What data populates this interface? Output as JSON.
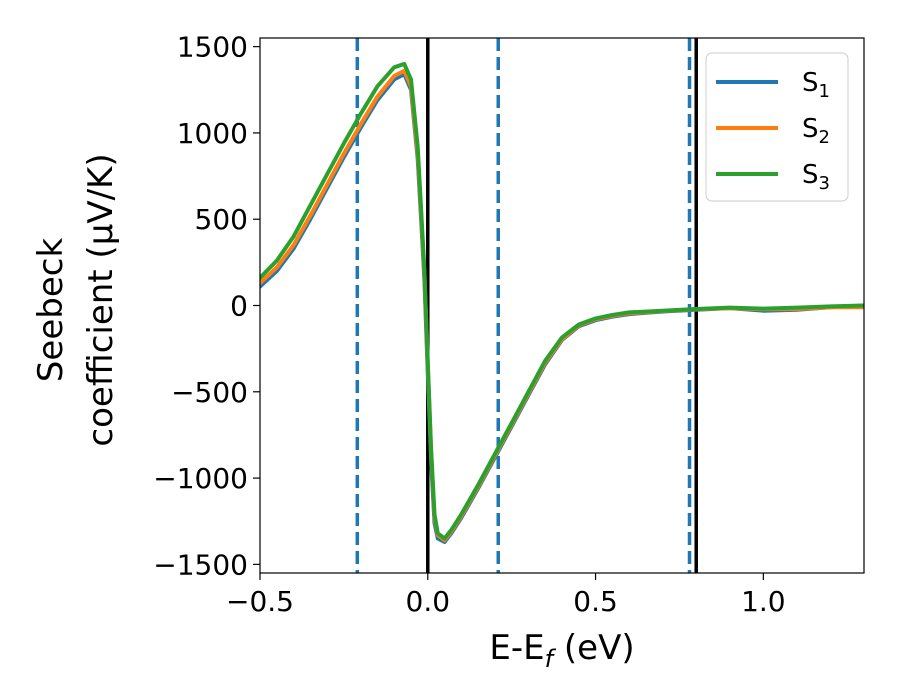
{
  "chart_data": {
    "type": "line",
    "title": "",
    "xlabel": "E-E$_f$ (eV)",
    "xlabel_parts": {
      "main": "E-E",
      "sub": "f",
      "rest": " (eV)"
    },
    "ylabel_line1": "Seebeck",
    "ylabel_line2": "coefficient  (μV/K)",
    "xlim": [
      -0.5,
      1.3
    ],
    "ylim": [
      -1550,
      1550
    ],
    "xticks": [
      -0.5,
      0.0,
      0.5,
      1.0
    ],
    "xtick_labels": [
      "−0.5",
      "0.0",
      "0.5",
      "1.0"
    ],
    "yticks": [
      -1500,
      -1000,
      -500,
      0,
      500,
      1000,
      1500
    ],
    "ytick_labels": [
      "−1500",
      "−1000",
      "−500",
      "0",
      "500",
      "1000",
      "1500"
    ],
    "grid": false,
    "legend": {
      "position": "top-right"
    },
    "series": [
      {
        "name": "S1",
        "label_main": "S",
        "label_sub": "1",
        "color": "#1f77b4",
        "x": [
          -0.5,
          -0.45,
          -0.4,
          -0.35,
          -0.3,
          -0.25,
          -0.2,
          -0.15,
          -0.1,
          -0.07,
          -0.05,
          -0.03,
          -0.02,
          -0.01,
          0.0,
          0.01,
          0.02,
          0.03,
          0.05,
          0.07,
          0.1,
          0.15,
          0.2,
          0.25,
          0.3,
          0.35,
          0.4,
          0.45,
          0.5,
          0.55,
          0.6,
          0.7,
          0.8,
          0.9,
          1.0,
          1.1,
          1.2,
          1.3
        ],
        "y": [
          110,
          200,
          330,
          500,
          680,
          860,
          1030,
          1190,
          1310,
          1340,
          1250,
          850,
          500,
          150,
          -400,
          -900,
          -1260,
          -1350,
          -1370,
          -1320,
          -1230,
          -1060,
          -880,
          -700,
          -520,
          -340,
          -200,
          -120,
          -85,
          -65,
          -50,
          -35,
          -25,
          -15,
          -30,
          -25,
          -10,
          0
        ]
      },
      {
        "name": "S2",
        "label_main": "S",
        "label_sub": "2",
        "color": "#ff7f0e",
        "x": [
          -0.5,
          -0.45,
          -0.4,
          -0.35,
          -0.3,
          -0.25,
          -0.2,
          -0.15,
          -0.1,
          -0.07,
          -0.05,
          -0.03,
          -0.02,
          -0.01,
          0.0,
          0.01,
          0.02,
          0.03,
          0.05,
          0.07,
          0.1,
          0.15,
          0.2,
          0.25,
          0.3,
          0.35,
          0.4,
          0.45,
          0.5,
          0.55,
          0.6,
          0.7,
          0.8,
          0.9,
          1.0,
          1.1,
          1.2,
          1.3
        ],
        "y": [
          130,
          220,
          350,
          520,
          700,
          880,
          1050,
          1210,
          1330,
          1360,
          1270,
          880,
          530,
          180,
          -350,
          -850,
          -1230,
          -1330,
          -1360,
          -1310,
          -1220,
          -1050,
          -870,
          -690,
          -510,
          -330,
          -195,
          -115,
          -80,
          -60,
          -45,
          -32,
          -22,
          -15,
          -22,
          -20,
          -10,
          -10
        ]
      },
      {
        "name": "S3",
        "label_main": "S",
        "label_sub": "3",
        "color": "#2ca02c",
        "x": [
          -0.5,
          -0.45,
          -0.4,
          -0.35,
          -0.3,
          -0.25,
          -0.2,
          -0.15,
          -0.1,
          -0.07,
          -0.05,
          -0.03,
          -0.02,
          -0.01,
          0.0,
          0.01,
          0.02,
          0.03,
          0.05,
          0.07,
          0.1,
          0.15,
          0.2,
          0.25,
          0.3,
          0.35,
          0.4,
          0.45,
          0.5,
          0.55,
          0.6,
          0.7,
          0.8,
          0.9,
          1.0,
          1.1,
          1.2,
          1.3
        ],
        "y": [
          160,
          260,
          400,
          580,
          760,
          940,
          1110,
          1270,
          1380,
          1400,
          1310,
          920,
          560,
          200,
          -330,
          -830,
          -1210,
          -1320,
          -1350,
          -1300,
          -1210,
          -1040,
          -860,
          -680,
          -500,
          -320,
          -185,
          -110,
          -75,
          -55,
          -40,
          -30,
          -20,
          -12,
          -18,
          -12,
          -5,
          0
        ]
      }
    ],
    "vlines": [
      {
        "x": -0.21,
        "style": "dashed",
        "color": "#1f77b4"
      },
      {
        "x": 0.0,
        "style": "solid",
        "color": "#000000"
      },
      {
        "x": 0.21,
        "style": "dashed",
        "color": "#1f77b4"
      },
      {
        "x": 0.78,
        "style": "dashed",
        "color": "#1f77b4"
      },
      {
        "x": 0.8,
        "style": "solid",
        "color": "#000000"
      }
    ]
  }
}
